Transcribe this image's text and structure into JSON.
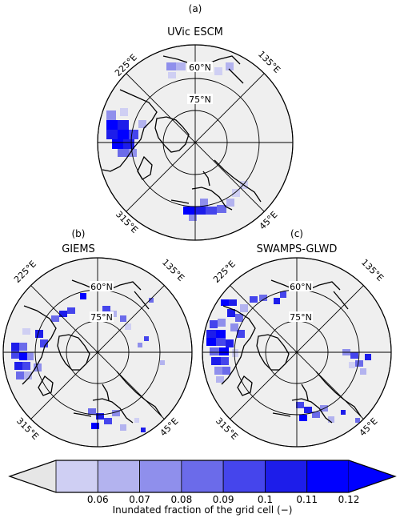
{
  "panels": [
    {
      "letter": "(a)",
      "title": "UVic ESCM"
    },
    {
      "letter": "(b)",
      "title": "GIEMS"
    },
    {
      "letter": "(c)",
      "title": "SWAMPS-GLWD"
    }
  ],
  "map_labels": {
    "lon_225": "225°E",
    "lon_135": "135°E",
    "lon_315": "315°E",
    "lon_45": "45°E",
    "lat_60": "60°N",
    "lat_75": "75°N"
  },
  "colorbar": {
    "ticks": [
      "0.06",
      "0.07",
      "0.08",
      "0.09",
      "0.1",
      "0.11",
      "0.12"
    ],
    "label": "Inundated fraction of the grid cell (−)",
    "colors": [
      "#e6e6e6",
      "#cfcff3",
      "#b3b3ef",
      "#8f8fec",
      "#6b6bea",
      "#4545ec",
      "#1d1dea",
      "#0000ff"
    ]
  }
}
